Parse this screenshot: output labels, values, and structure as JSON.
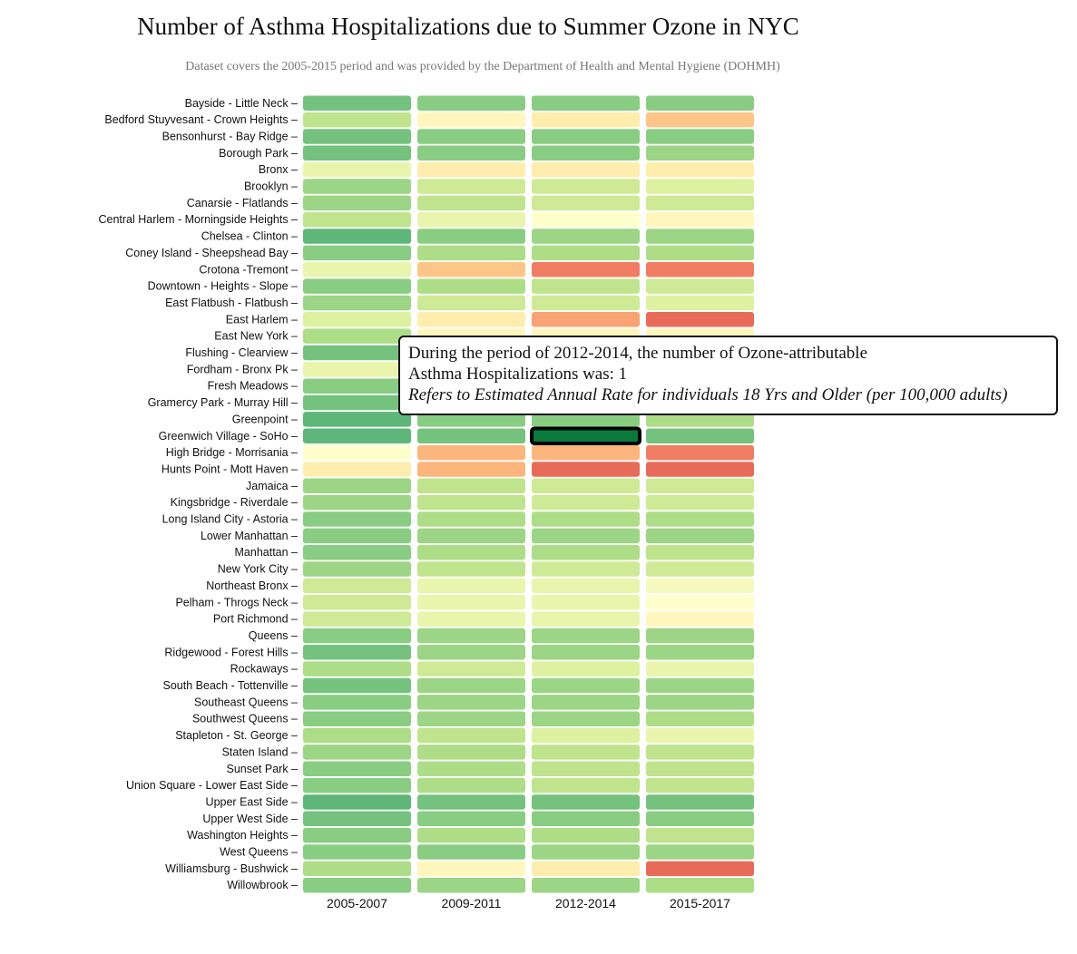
{
  "title": "Number of Asthma Hospitalizations due to Summer Ozone in NYC",
  "subtitle": "Dataset covers the 2005-2015 period and was provided by the Department of Health and Mental Hygiene (DOHMH)",
  "tooltip": {
    "line1": "During the period of 2012-2014, the number of Ozone-attributable",
    "line2": "Asthma Hospitalizations was: 1",
    "note": "Refers to Estimated Annual Rate for individuals 18 Yrs and Older (per 100,000 adults)"
  },
  "chart_data": {
    "type": "heatmap",
    "color_scale": "RdYlGn (reversed: low = green, high = red)",
    "scale_range": [
      1,
      12
    ],
    "highlighted_cell": {
      "row": "Greenwich Village - SoHo",
      "column": "2012-2014",
      "value": 1
    },
    "columns": [
      "2005-2007",
      "2009-2011",
      "2012-2014",
      "2015-2017"
    ],
    "rows": [
      "Bayside - Little Neck",
      "Bedford Stuyvesant - Crown Heights",
      "Bensonhurst - Bay Ridge",
      "Borough Park",
      "Bronx",
      "Brooklyn",
      "Canarsie - Flatlands",
      "Central Harlem - Morningside Heights",
      "Chelsea - Clinton",
      "Coney Island - Sheepshead Bay",
      "Crotona -Tremont",
      "Downtown - Heights - Slope",
      "East Flatbush - Flatbush",
      "East Harlem",
      "East New York",
      "Flushing - Clearview",
      "Fordham - Bronx Pk",
      "Fresh Meadows",
      "Gramercy Park - Murray Hill",
      "Greenpoint",
      "Greenwich Village - SoHo",
      "High Bridge - Morrisania",
      "Hunts Point - Mott Haven",
      "Jamaica",
      "Kingsbridge - Riverdale",
      "Long Island City - Astoria",
      "Lower Manhattan",
      "Manhattan",
      "New York City",
      "Northeast Bronx",
      "Pelham - Throgs Neck",
      "Port Richmond",
      "Queens",
      "Ridgewood - Forest Hills",
      "Rockaways",
      "South Beach - Tottenville",
      "Southeast Queens",
      "Southwest Queens",
      "Stapleton - St. George",
      "Staten Island",
      "Sunset Park",
      "Union Square - Lower East Side",
      "Upper East Side",
      "Upper West Side",
      "Washington Heights",
      "West Queens",
      "Williamsburg - Bushwick",
      "Willowbrook"
    ],
    "values": [
      [
        2,
        2.5,
        2.5,
        2.5
      ],
      [
        4,
        7,
        7.5,
        9
      ],
      [
        2,
        2.5,
        2.5,
        2.5
      ],
      [
        2,
        2.5,
        2.5,
        3
      ],
      [
        5.5,
        7.5,
        7.5,
        7.5
      ],
      [
        3,
        4.5,
        4.5,
        5
      ],
      [
        3,
        4,
        4.5,
        4.5
      ],
      [
        4,
        5.5,
        6.5,
        7
      ],
      [
        1.5,
        2.5,
        3,
        3
      ],
      [
        2.5,
        3.5,
        3.5,
        3.5
      ],
      [
        5.5,
        9,
        11,
        11
      ],
      [
        2.5,
        3.5,
        4,
        4.5
      ],
      [
        3,
        4.5,
        4.5,
        5
      ],
      [
        5,
        7.5,
        10,
        11.5
      ],
      [
        3.5,
        7,
        7,
        7
      ],
      [
        2,
        3,
        3,
        3
      ],
      [
        5.5,
        6.5,
        6.5,
        6.5
      ],
      [
        2.5,
        3,
        3,
        3
      ],
      [
        2,
        2.5,
        2.5,
        3
      ],
      [
        1.5,
        2.5,
        2.5,
        3.5
      ],
      [
        1.5,
        2,
        1,
        2
      ],
      [
        6.5,
        9.5,
        9.5,
        11
      ],
      [
        7.5,
        9.5,
        11.5,
        11.5
      ],
      [
        3,
        4,
        4.5,
        4.5
      ],
      [
        3,
        4,
        4.5,
        4.5
      ],
      [
        2.5,
        3.5,
        3.5,
        3.5
      ],
      [
        2.5,
        3,
        3,
        3
      ],
      [
        2.5,
        3.5,
        3.5,
        4
      ],
      [
        3,
        4,
        4.5,
        4.5
      ],
      [
        4.5,
        5.5,
        5.5,
        6
      ],
      [
        4.5,
        5.5,
        5.5,
        6.5
      ],
      [
        4.5,
        5.5,
        5.5,
        7
      ],
      [
        2.5,
        3,
        3,
        3
      ],
      [
        2,
        3,
        3,
        3
      ],
      [
        3.5,
        4.5,
        5,
        5.5
      ],
      [
        2,
        3,
        3,
        3
      ],
      [
        2.5,
        3,
        3,
        3
      ],
      [
        2.5,
        3,
        3,
        3.5
      ],
      [
        3.5,
        4,
        5,
        5.5
      ],
      [
        3,
        3.5,
        4,
        4
      ],
      [
        2.5,
        3.5,
        4,
        4
      ],
      [
        2.5,
        3.5,
        4,
        4
      ],
      [
        1.5,
        2,
        2,
        2
      ],
      [
        2,
        2.5,
        2.5,
        2.5
      ],
      [
        2.5,
        3.5,
        3.5,
        4
      ],
      [
        2.5,
        2.5,
        3,
        3
      ],
      [
        3.5,
        7,
        7.5,
        11.5
      ],
      [
        2.5,
        3,
        3,
        3.5
      ]
    ]
  }
}
